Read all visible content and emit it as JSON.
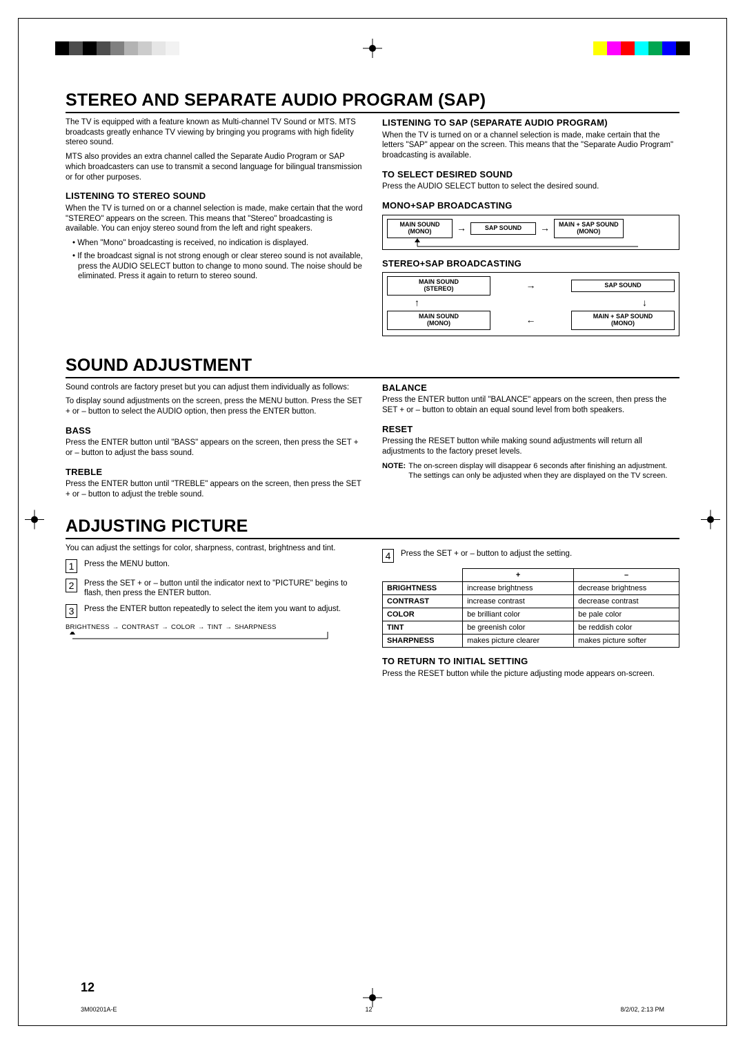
{
  "reg_bars_left_colors": [
    "#000000",
    "#4d4d4d",
    "#000000",
    "#4d4d4d",
    "#808080",
    "#b3b3b3",
    "#cccccc",
    "#e6e6e6",
    "#f2f2f2",
    "#ffffff"
  ],
  "reg_bars_right_colors": [
    "#ffffff",
    "#ffff00",
    "#ff00ff",
    "#ff0000",
    "#00ffff",
    "#00a651",
    "#0000ff",
    "#000000"
  ],
  "section1": {
    "title": "STEREO AND SEPARATE AUDIO PROGRAM (SAP)",
    "intro1": "The TV is equipped with a feature known as Multi-channel TV Sound or MTS. MTS broadcasts greatly enhance TV viewing by bringing you programs with high fidelity stereo sound.",
    "intro2": "MTS also provides an extra channel called the Separate Audio Program or SAP which broadcasters can use to transmit a second language for bilingual transmission or for other purposes.",
    "listen_stereo_head": "LISTENING TO STEREO SOUND",
    "listen_stereo_body": "When the TV is turned on or a channel selection is made, make certain that the word \"STEREO\" appears on the screen. This means that \"Stereo\" broadcasting is available. You can enjoy stereo sound from the left and right speakers.",
    "bullet1": "When \"Mono\" broadcasting is received, no indication is displayed.",
    "bullet2": "If the broadcast signal is not strong enough or clear stereo sound is not available, press the AUDIO SELECT button to change to mono sound. The noise should be eliminated. Press it again to return to stereo sound.",
    "listen_sap_head": "LISTENING TO SAP (SEPARATE AUDIO PROGRAM)",
    "listen_sap_body": "When the TV is turned on or a channel selection is made, make certain that the letters \"SAP\" appear on the screen. This means that the \"Separate Audio Program\" broadcasting is available.",
    "select_sound_head": "TO SELECT DESIRED SOUND",
    "select_sound_body": "Press the AUDIO SELECT button to select the desired sound.",
    "mono_sap_head": "MONO+SAP BROADCASTING",
    "monosap_box1a": "MAIN SOUND",
    "monosap_box1b": "(MONO)",
    "monosap_box2": "SAP SOUND",
    "monosap_box3a": "MAIN + SAP SOUND",
    "monosap_box3b": "(MONO)",
    "stereo_sap_head": "STEREO+SAP BROADCASTING",
    "ss_box1a": "MAIN SOUND",
    "ss_box1b": "(STEREO)",
    "ss_box2": "SAP SOUND",
    "ss_box3a": "MAIN SOUND",
    "ss_box3b": "(MONO)",
    "ss_box4a": "MAIN + SAP SOUND",
    "ss_box4b": "(MONO)"
  },
  "section2": {
    "title": "SOUND ADJUSTMENT",
    "intro1": "Sound controls are factory preset but you can adjust them individually as follows:",
    "intro2": "To display sound adjustments on the screen, press the MENU button. Press the SET + or – button to select the AUDIO option, then press the ENTER button.",
    "bass_head": "BASS",
    "bass_body": "Press the ENTER button until \"BASS\" appears on the screen, then press the SET + or – button to adjust the bass sound.",
    "treble_head": "TREBLE",
    "treble_body": "Press the ENTER button until \"TREBLE\" appears on the screen, then press the SET + or – button to adjust the treble sound.",
    "balance_head": "BALANCE",
    "balance_body": "Press the ENTER button until \"BALANCE\" appears on the screen, then press the SET + or – button to obtain an equal sound level from both speakers.",
    "reset_head": "RESET",
    "reset_body": "Pressing the RESET button while making sound adjustments will return all adjustments to the factory preset levels.",
    "note_label": "NOTE:",
    "note_body": "The on-screen display will disappear 6 seconds after finishing an adjustment. The settings can only be adjusted when they are displayed on the TV screen."
  },
  "section3": {
    "title": "ADJUSTING PICTURE",
    "intro": "You can adjust the settings for color, sharpness, contrast, brightness and tint.",
    "step1": "Press the MENU button.",
    "step2": "Press the SET + or – button until the indicator next to \"PICTURE\" begins to flash, then press the ENTER button.",
    "step3": "Press the ENTER button repeatedly to select the item you want to adjust.",
    "flow_items": [
      "BRIGHTNESS",
      "CONTRAST",
      "COLOR",
      "TINT",
      "SHARPNESS"
    ],
    "step4": "Press the SET + or –  button to adjust the setting.",
    "table": {
      "col_plus": "+",
      "col_minus": "–",
      "rows": [
        {
          "label": "BRIGHTNESS",
          "plus": "increase brightness",
          "minus": "decrease brightness"
        },
        {
          "label": "CONTRAST",
          "plus": "increase contrast",
          "minus": "decrease contrast"
        },
        {
          "label": "COLOR",
          "plus": "be brilliant color",
          "minus": "be pale color"
        },
        {
          "label": "TINT",
          "plus": "be greenish color",
          "minus": "be reddish color"
        },
        {
          "label": "SHARPNESS",
          "plus": "makes picture clearer",
          "minus": "makes picture softer"
        }
      ]
    },
    "return_head": "TO RETURN TO INITIAL SETTING",
    "return_body": "Press the RESET button while the picture adjusting mode appears on-screen."
  },
  "page_number": "12",
  "footer": {
    "doc_id": "3M00201A-E",
    "page": "12",
    "stamp": "8/2/02, 2:13 PM"
  }
}
